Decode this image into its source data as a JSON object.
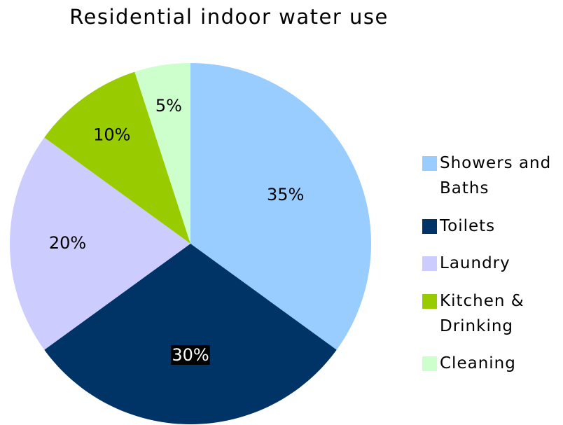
{
  "chart_data": {
    "type": "pie",
    "title": "Residential indoor water use",
    "categories": [
      "Showers and Baths",
      "Toilets",
      "Laundry",
      "Kitchen & Drinking",
      "Cleaning"
    ],
    "values": [
      35,
      30,
      20,
      10,
      5
    ],
    "value_labels": [
      "35%",
      "30%",
      "20%",
      "10%",
      "5%"
    ],
    "colors": [
      "#99ccff",
      "#003366",
      "#ccccff",
      "#99cc00",
      "#ccffcc"
    ],
    "legend": "right"
  }
}
